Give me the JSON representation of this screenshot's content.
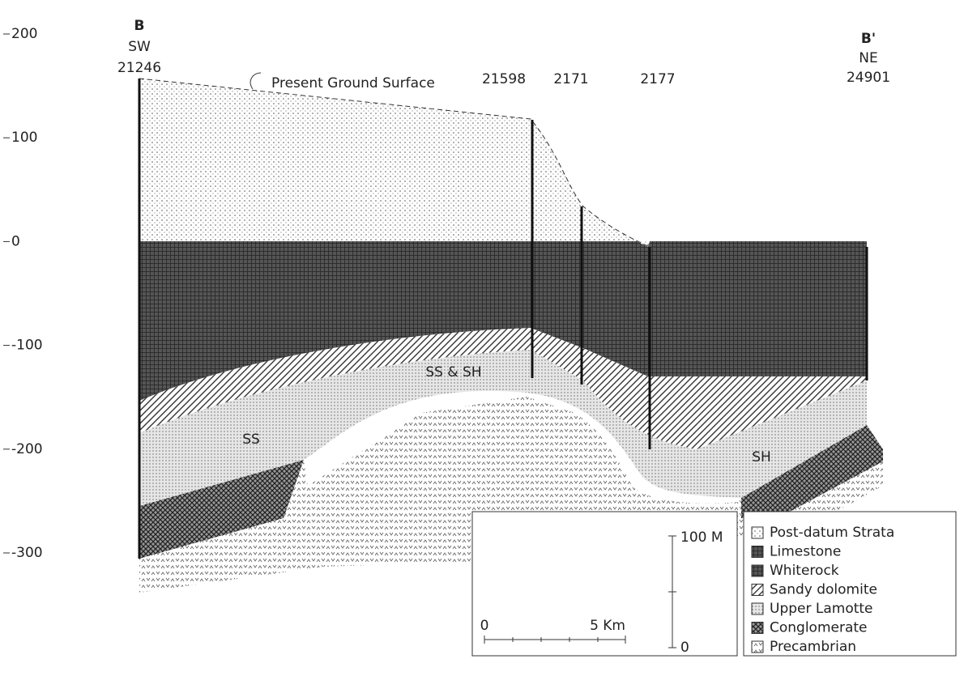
{
  "axis": {
    "labels": [
      "200",
      "100",
      "0",
      "-100",
      "-200",
      "-300"
    ]
  },
  "section": {
    "sw": {
      "letter": "B",
      "direction": "SW",
      "well": "21246"
    },
    "ne": {
      "letter": "B'",
      "direction": "NE",
      "well": "24901"
    },
    "wells": [
      "21598",
      "2171",
      "2177"
    ],
    "surface_label": "Present Ground Surface",
    "unit_labels": [
      "SS & SH",
      "SS",
      "SH"
    ]
  },
  "scale": {
    "vertical": {
      "top": "100 M",
      "bottom": "0"
    },
    "horizontal": {
      "left": "0",
      "right": "5 Km"
    }
  },
  "legend": [
    "Post-datum Strata",
    "Limestone",
    "Whiterock",
    "Sandy dolomite",
    "Upper Lamotte",
    "Conglomerate",
    "Precambrian"
  ]
}
